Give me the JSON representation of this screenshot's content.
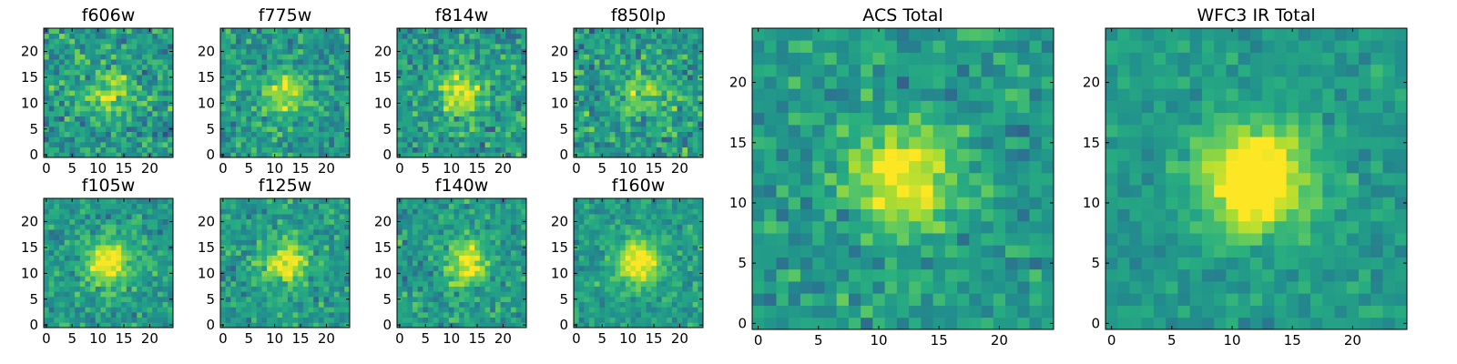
{
  "figure": {
    "description_free": true
  },
  "chart_data": [
    {
      "id": "f606w",
      "type": "heatmap",
      "title": "f606w",
      "xticks": [
        "0",
        "5",
        "10",
        "15",
        "20"
      ],
      "yticks": [
        "0",
        "5",
        "10",
        "15",
        "20"
      ],
      "grid_size": 25,
      "xlim": [
        0,
        25
      ],
      "ylim": [
        0,
        25
      ],
      "colormap": "viridis",
      "peak": [
        12,
        11.5
      ],
      "peak_strength": 0.35,
      "noise": 0.38,
      "seed": 11
    },
    {
      "id": "f775w",
      "type": "heatmap",
      "title": "f775w",
      "xticks": [
        "0",
        "5",
        "10",
        "15",
        "20"
      ],
      "yticks": [
        "0",
        "5",
        "10",
        "15",
        "20"
      ],
      "grid_size": 25,
      "xlim": [
        0,
        25
      ],
      "ylim": [
        0,
        25
      ],
      "colormap": "viridis",
      "peak": [
        12,
        12
      ],
      "peak_strength": 0.35,
      "noise": 0.34,
      "seed": 23
    },
    {
      "id": "f814w",
      "type": "heatmap",
      "title": "f814w",
      "xticks": [
        "0",
        "5",
        "10",
        "15",
        "20"
      ],
      "yticks": [
        "0",
        "5",
        "10",
        "15",
        "20"
      ],
      "grid_size": 25,
      "xlim": [
        0,
        25
      ],
      "ylim": [
        0,
        25
      ],
      "colormap": "viridis",
      "peak": [
        12,
        12
      ],
      "peak_strength": 0.42,
      "noise": 0.36,
      "seed": 37
    },
    {
      "id": "f850lp",
      "type": "heatmap",
      "title": "f850lp",
      "xticks": [
        "0",
        "5",
        "10",
        "15",
        "20"
      ],
      "yticks": [
        "0",
        "5",
        "10",
        "15",
        "20"
      ],
      "grid_size": 25,
      "xlim": [
        0,
        25
      ],
      "ylim": [
        0,
        25
      ],
      "colormap": "viridis",
      "peak": [
        13,
        12
      ],
      "peak_strength": 0.28,
      "noise": 0.4,
      "seed": 41
    },
    {
      "id": "f105w",
      "type": "heatmap",
      "title": "f105w",
      "xticks": [
        "0",
        "5",
        "10",
        "15",
        "20"
      ],
      "yticks": [
        "0",
        "5",
        "10",
        "15",
        "20"
      ],
      "grid_size": 25,
      "xlim": [
        0,
        25
      ],
      "ylim": [
        0,
        25
      ],
      "colormap": "viridis",
      "peak": [
        12,
        12
      ],
      "peak_strength": 0.5,
      "noise": 0.28,
      "seed": 53
    },
    {
      "id": "f125w",
      "type": "heatmap",
      "title": "f125w",
      "xticks": [
        "0",
        "5",
        "10",
        "15",
        "20"
      ],
      "yticks": [
        "0",
        "5",
        "10",
        "15",
        "20"
      ],
      "grid_size": 25,
      "xlim": [
        0,
        25
      ],
      "ylim": [
        0,
        25
      ],
      "colormap": "viridis",
      "peak": [
        12,
        12
      ],
      "peak_strength": 0.45,
      "noise": 0.3,
      "seed": 67
    },
    {
      "id": "f140w",
      "type": "heatmap",
      "title": "f140w",
      "xticks": [
        "0",
        "5",
        "10",
        "15",
        "20"
      ],
      "yticks": [
        "0",
        "5",
        "10",
        "15",
        "20"
      ],
      "grid_size": 25,
      "xlim": [
        0,
        25
      ],
      "ylim": [
        0,
        25
      ],
      "colormap": "viridis",
      "peak": [
        13,
        12
      ],
      "peak_strength": 0.45,
      "noise": 0.3,
      "seed": 71
    },
    {
      "id": "f160w",
      "type": "heatmap",
      "title": "f160w",
      "xticks": [
        "0",
        "5",
        "10",
        "15",
        "20"
      ],
      "yticks": [
        "0",
        "5",
        "10",
        "15",
        "20"
      ],
      "grid_size": 25,
      "xlim": [
        0,
        25
      ],
      "ylim": [
        0,
        25
      ],
      "colormap": "viridis",
      "peak": [
        12,
        12
      ],
      "peak_strength": 0.55,
      "noise": 0.25,
      "seed": 83
    },
    {
      "id": "acs_total",
      "type": "heatmap",
      "title": "ACS Total",
      "xticks": [
        "0",
        "5",
        "10",
        "15",
        "20"
      ],
      "yticks": [
        "0",
        "5",
        "10",
        "15",
        "20"
      ],
      "grid_size": 25,
      "xlim": [
        0,
        25
      ],
      "ylim": [
        0,
        25
      ],
      "colormap": "viridis",
      "peak": [
        12,
        12
      ],
      "peak_strength": 0.5,
      "noise": 0.28,
      "seed": 97
    },
    {
      "id": "wfc3_ir_total",
      "type": "heatmap",
      "title": "WFC3 IR Total",
      "xticks": [
        "0",
        "5",
        "10",
        "15",
        "20"
      ],
      "yticks": [
        "0",
        "5",
        "10",
        "15",
        "20"
      ],
      "grid_size": 25,
      "xlim": [
        0,
        25
      ],
      "ylim": [
        0,
        25
      ],
      "colormap": "viridis",
      "peak": [
        12,
        12
      ],
      "peak_strength": 0.65,
      "noise": 0.2,
      "seed": 101
    }
  ]
}
